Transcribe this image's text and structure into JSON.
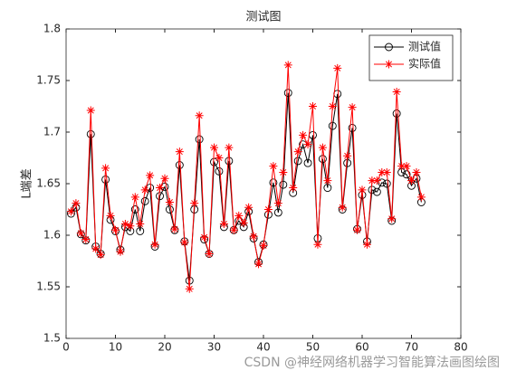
{
  "chart_data": {
    "type": "line",
    "title": "测试图",
    "ylabel": "L端差",
    "x": [
      1,
      2,
      3,
      4,
      5,
      6,
      7,
      8,
      9,
      10,
      11,
      12,
      13,
      14,
      15,
      16,
      17,
      18,
      19,
      20,
      21,
      22,
      23,
      24,
      25,
      26,
      27,
      28,
      29,
      30,
      31,
      32,
      33,
      34,
      35,
      36,
      37,
      38,
      39,
      40,
      41,
      42,
      43,
      44,
      45,
      46,
      47,
      48,
      49,
      50,
      51,
      52,
      53,
      54,
      55,
      56,
      57,
      58,
      59,
      60,
      61,
      62,
      63,
      64,
      65,
      66,
      67,
      68,
      69,
      70,
      71,
      72
    ],
    "series": [
      {
        "name": "测试值",
        "color": "#000000",
        "marker": "circle",
        "values": [
          1.621,
          1.627,
          1.601,
          1.595,
          1.698,
          1.589,
          1.582,
          1.654,
          1.615,
          1.604,
          1.586,
          1.608,
          1.604,
          1.625,
          1.604,
          1.633,
          1.646,
          1.589,
          1.638,
          1.647,
          1.625,
          1.605,
          1.668,
          1.594,
          1.556,
          1.625,
          1.693,
          1.596,
          1.582,
          1.671,
          1.662,
          1.608,
          1.672,
          1.605,
          1.614,
          1.608,
          1.623,
          1.597,
          1.574,
          1.591,
          1.62,
          1.651,
          1.622,
          1.649,
          1.738,
          1.641,
          1.672,
          1.688,
          1.67,
          1.697,
          1.597,
          1.674,
          1.646,
          1.706,
          1.737,
          1.625,
          1.67,
          1.704,
          1.606,
          1.639,
          1.594,
          1.644,
          1.642,
          1.651,
          1.65,
          1.614,
          1.718,
          1.661,
          1.659,
          1.648,
          1.655,
          1.632
        ]
      },
      {
        "name": "实际值",
        "color": "#ff0000",
        "marker": "star",
        "values": [
          1.623,
          1.631,
          1.602,
          1.596,
          1.721,
          1.587,
          1.581,
          1.665,
          1.619,
          1.605,
          1.584,
          1.611,
          1.609,
          1.637,
          1.611,
          1.644,
          1.658,
          1.591,
          1.646,
          1.655,
          1.632,
          1.606,
          1.681,
          1.593,
          1.548,
          1.631,
          1.716,
          1.598,
          1.582,
          1.685,
          1.675,
          1.611,
          1.685,
          1.605,
          1.619,
          1.612,
          1.627,
          1.599,
          1.572,
          1.59,
          1.625,
          1.667,
          1.631,
          1.661,
          1.765,
          1.646,
          1.681,
          1.697,
          1.688,
          1.725,
          1.591,
          1.685,
          1.653,
          1.725,
          1.762,
          1.627,
          1.677,
          1.724,
          1.605,
          1.644,
          1.591,
          1.653,
          1.653,
          1.661,
          1.661,
          1.616,
          1.739,
          1.667,
          1.667,
          1.653,
          1.661,
          1.637
        ]
      }
    ],
    "xlim": [
      0,
      80
    ],
    "xticks": [
      0,
      10,
      20,
      30,
      40,
      50,
      60,
      70,
      80
    ],
    "ylim": [
      1.5,
      1.8
    ],
    "yticks": [
      1.5,
      1.55,
      1.6,
      1.65,
      1.7,
      1.75,
      1.8
    ],
    "legend": "northeast",
    "grid": false
  },
  "watermark": "CSDN @神经网络机器学习智能算法画图绘图"
}
